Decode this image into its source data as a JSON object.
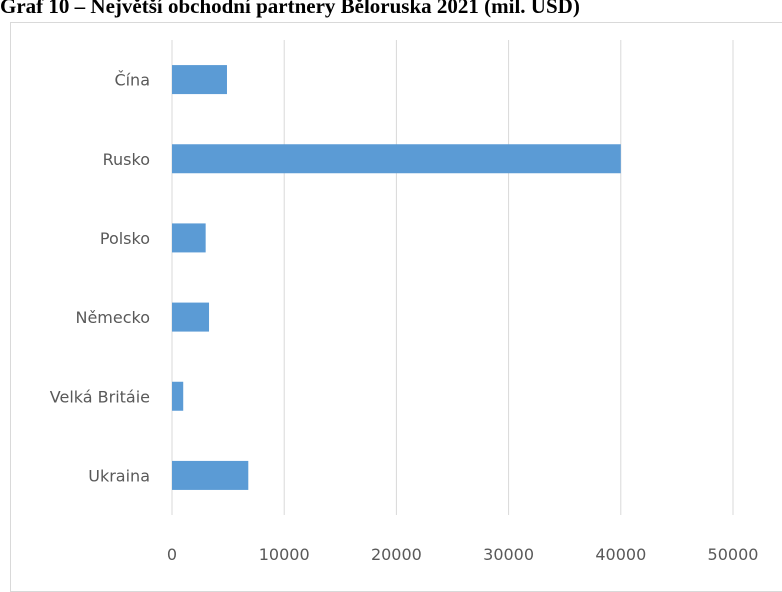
{
  "chart_data": {
    "type": "bar",
    "orientation": "horizontal",
    "title": "Graf 10 – Největší obchodní partnery Běloruska 2021 (mil. USD)",
    "categories": [
      "Čína",
      "Rusko",
      "Polsko",
      "Německo",
      "Velká Britáie",
      "Ukraina"
    ],
    "values": [
      4900,
      40000,
      3000,
      3300,
      1000,
      6800
    ],
    "xlim": [
      0,
      50000
    ],
    "xticks": [
      "0",
      "10000",
      "20000",
      "30000",
      "40000",
      "50000"
    ],
    "grid": true,
    "legend": "none",
    "bar_color": "#5b9bd5",
    "grid_color": "#d9d9d9"
  }
}
